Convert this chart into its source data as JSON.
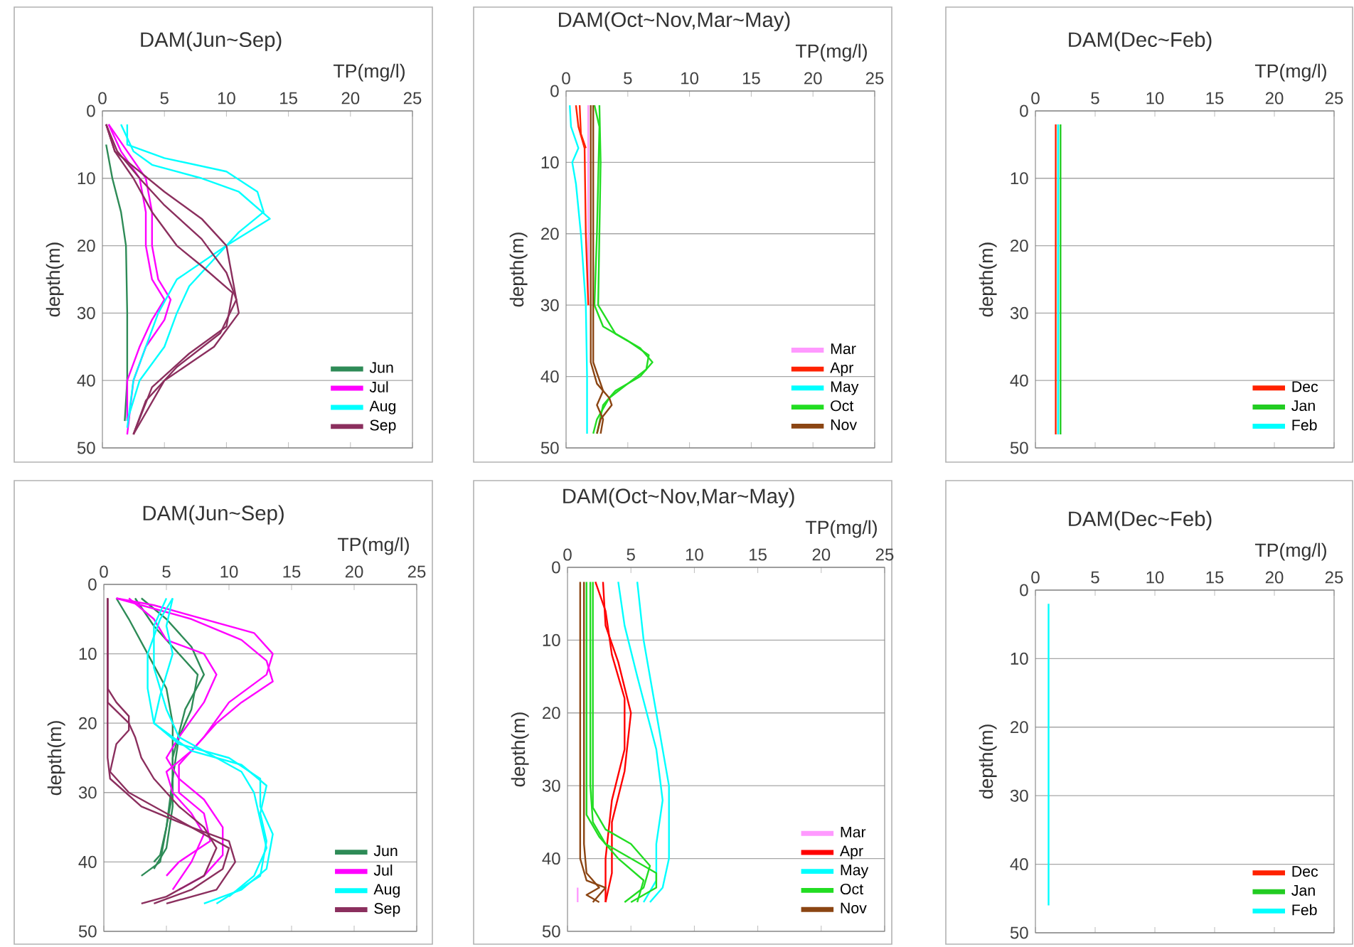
{
  "chart_data": [
    {
      "type": "line",
      "title": "DAM(Jun~Sep)",
      "xlabel": "TP(mg/l)",
      "ylabel": "depth(m)",
      "xlim": [
        0,
        25
      ],
      "ylim": [
        50,
        0
      ],
      "xticks": [
        0,
        5,
        10,
        15,
        20,
        25
      ],
      "yticks": [
        0,
        10,
        20,
        30,
        40,
        50
      ],
      "grid": "y",
      "legend": "bottom right",
      "series": [
        {
          "name": "Jun",
          "color": "#2e8b57",
          "x": [
            0.3,
            0.8,
            1.5,
            1.9,
            2.0,
            2.0,
            1.8
          ],
          "values": [
            5,
            10,
            15,
            20,
            30,
            40,
            46
          ]
        },
        {
          "name": "Jul",
          "color": "#ff00ff",
          "x": [
            0.5,
            1.5,
            3,
            3.5,
            3.5,
            4,
            5,
            4,
            3,
            2,
            2
          ],
          "values": [
            2,
            6,
            10,
            15,
            20,
            25,
            28,
            31,
            35,
            40,
            46
          ]
        },
        {
          "color": "#ff00ff",
          "x": [
            0.5,
            2,
            3.5,
            4,
            4,
            4.5,
            5.5,
            5,
            3.5,
            2.5,
            2
          ],
          "values": [
            2,
            6,
            10,
            15,
            20,
            25,
            28,
            31,
            35,
            40,
            48
          ]
        },
        {
          "name": "Aug",
          "color": "#00ffff",
          "x": [
            2,
            2,
            5,
            10,
            12.5,
            13,
            11,
            9,
            7,
            6,
            5,
            3,
            2
          ],
          "values": [
            2,
            5,
            7,
            9,
            12,
            15,
            18,
            22,
            26,
            30,
            35,
            40,
            46
          ]
        },
        {
          "color": "#00ffff",
          "x": [
            1.5,
            2.5,
            4,
            8,
            11,
            13.5,
            10,
            6,
            4.5,
            3.5,
            2.5,
            2
          ],
          "values": [
            2,
            6,
            8,
            10,
            12,
            16,
            20,
            25,
            30,
            35,
            40,
            47
          ]
        },
        {
          "name": "Sep",
          "color": "#8b2f5e",
          "x": [
            0.3,
            1,
            3,
            5,
            8,
            10,
            10.5,
            11,
            9,
            5,
            2.5
          ],
          "values": [
            2,
            6,
            9,
            12,
            16,
            20,
            25,
            30,
            35,
            40,
            48
          ]
        },
        {
          "color": "#8b2f5e",
          "x": [
            0.3,
            1.2,
            3,
            5,
            8,
            10,
            10.8,
            9.5,
            6,
            3.5,
            2.5
          ],
          "values": [
            2,
            6,
            10,
            14,
            19,
            24,
            28,
            33,
            38,
            43,
            48
          ]
        },
        {
          "color": "#8b2f5e",
          "x": [
            0.3,
            1,
            2.5,
            4,
            6,
            8,
            10.5,
            10,
            7,
            4,
            2.5
          ],
          "values": [
            2,
            6,
            10,
            15,
            20,
            23,
            27,
            32,
            36,
            41,
            48
          ]
        }
      ]
    },
    {
      "type": "line",
      "title": "DAM(Oct~Nov,Mar~May)",
      "xlabel": "TP(mg/l)",
      "ylabel": "depth(m)",
      "xlim": [
        0,
        25
      ],
      "ylim": [
        50,
        0
      ],
      "xticks": [
        0,
        5,
        10,
        15,
        20,
        25
      ],
      "yticks": [
        0,
        10,
        20,
        30,
        40,
        50
      ],
      "grid": "y",
      "legend": "bottom right",
      "series": [
        {
          "name": "Mar",
          "color": "#ff99ff",
          "x": [
            1.8,
            1.8
          ],
          "values": [
            2,
            30
          ]
        },
        {
          "name": "Apr",
          "color": "#ff2200",
          "x": [
            0.8,
            1,
            1.5,
            1.6,
            1.8
          ],
          "values": [
            2,
            5,
            8,
            20,
            30
          ]
        },
        {
          "color": "#ff2200",
          "x": [
            1.1,
            1.2,
            1.6
          ],
          "values": [
            2,
            6,
            8
          ]
        },
        {
          "name": "May",
          "color": "#00ffff",
          "x": [
            0.3,
            0.4,
            1,
            0.5,
            0.8,
            1.2,
            1.6,
            1.7,
            1.7
          ],
          "values": [
            2,
            5,
            8,
            10,
            13,
            20,
            30,
            40,
            48
          ]
        },
        {
          "name": "Oct",
          "color": "#22dd22",
          "x": [
            2.3,
            2.7,
            2.5,
            2.3,
            3,
            5,
            6.7,
            6.5,
            5,
            3.5,
            2.5,
            2.2
          ],
          "values": [
            2,
            5,
            20,
            30,
            33,
            35,
            37,
            39,
            41,
            43,
            46,
            48
          ]
        },
        {
          "color": "#22dd22",
          "x": [
            2.7,
            2.8,
            2.6,
            4,
            6,
            7,
            6,
            4,
            3,
            2.5
          ],
          "values": [
            2,
            10,
            30,
            34,
            36,
            38,
            40,
            42,
            44,
            48
          ]
        },
        {
          "name": "Nov",
          "color": "#8b4513",
          "x": [
            2,
            2,
            2.5,
            3.5,
            3.7,
            2.8,
            2.5
          ],
          "values": [
            2,
            38,
            41,
            43,
            44,
            46,
            48
          ]
        },
        {
          "color": "#8b4513",
          "x": [
            2.2,
            2.2,
            3,
            2.5,
            3,
            2.8
          ],
          "values": [
            2,
            38,
            42,
            44,
            46,
            48
          ]
        }
      ]
    },
    {
      "type": "line",
      "title": "DAM(Dec~Feb)",
      "xlabel": "TP(mg/l)",
      "ylabel": "depth(m)",
      "xlim": [
        0,
        25
      ],
      "ylim": [
        50,
        0
      ],
      "xticks": [
        0,
        5,
        10,
        15,
        20,
        25
      ],
      "yticks": [
        0,
        10,
        20,
        30,
        40,
        50
      ],
      "grid": "y",
      "legend": "bottom right",
      "series": [
        {
          "name": "Dec",
          "color": "#ff2200",
          "x": [
            1.7,
            1.7
          ],
          "values": [
            2,
            48
          ]
        },
        {
          "name": "Jan",
          "color": "#22cc22",
          "x": [
            2.1,
            2.1
          ],
          "values": [
            2,
            48
          ]
        },
        {
          "name": "Feb",
          "color": "#00ffff",
          "x": [
            1.9,
            1.9
          ],
          "values": [
            2,
            48
          ]
        }
      ]
    },
    {
      "type": "line",
      "title": "DAM(Jun~Sep)",
      "xlabel": "TP(mg/l)",
      "ylabel": "depth(m)",
      "xlim": [
        0,
        25
      ],
      "ylim": [
        50,
        0
      ],
      "xticks": [
        0,
        5,
        10,
        15,
        20,
        25
      ],
      "yticks": [
        0,
        10,
        20,
        30,
        40,
        50
      ],
      "grid": "y",
      "legend": "bottom right",
      "series": [
        {
          "name": "Jun",
          "color": "#2e8b57",
          "x": [
            1,
            2,
            3.5,
            5,
            5.5,
            5.5,
            5,
            4.5,
            3
          ],
          "values": [
            2,
            5,
            10,
            15,
            20,
            30,
            35,
            40,
            42
          ]
        },
        {
          "color": "#2e8b57",
          "x": [
            2.5,
            4,
            6,
            7.5,
            7,
            6,
            5.5,
            5,
            4.5,
            4
          ],
          "values": [
            2,
            6,
            10,
            13,
            18,
            22,
            28,
            35,
            39,
            40
          ]
        },
        {
          "color": "#2e8b57",
          "x": [
            3,
            5,
            7,
            8,
            6.5,
            5.5,
            5.5,
            5,
            4
          ],
          "values": [
            2,
            5,
            9,
            13,
            18,
            25,
            32,
            38,
            41
          ]
        },
        {
          "name": "Jul",
          "color": "#ff00ff",
          "x": [
            1,
            4,
            12,
            13.5,
            13,
            10,
            8,
            6,
            6,
            8,
            8.5,
            6,
            5
          ],
          "values": [
            2,
            3,
            7,
            10,
            13,
            17,
            22,
            26,
            30,
            33,
            37,
            40,
            42
          ]
        },
        {
          "color": "#ff00ff",
          "x": [
            2,
            4,
            5,
            8,
            9,
            8,
            6,
            5,
            6,
            8,
            9.5,
            9.5,
            8,
            6
          ],
          "values": [
            2,
            5,
            8,
            10,
            13,
            17,
            22,
            25,
            28,
            31,
            35,
            39,
            42,
            44
          ]
        },
        {
          "color": "#ff00ff",
          "x": [
            1,
            3,
            7,
            11,
            13,
            13.5,
            11,
            9,
            7,
            5,
            5.5,
            7,
            8,
            7,
            5.5
          ],
          "values": [
            2,
            3,
            5,
            8,
            11,
            14,
            17,
            20,
            24,
            27,
            30,
            33,
            36,
            40,
            44
          ]
        },
        {
          "name": "Aug",
          "color": "#00ffff",
          "x": [
            5.5,
            4.5,
            3.5,
            3.5,
            4,
            6,
            10,
            12.5,
            12.5,
            13.5,
            13,
            11,
            8
          ],
          "values": [
            2,
            5,
            10,
            15,
            20,
            23,
            25,
            28,
            32,
            36,
            41,
            44,
            46
          ]
        },
        {
          "color": "#00ffff",
          "x": [
            5,
            4,
            4,
            5,
            6,
            9,
            11,
            12,
            12.5,
            13,
            12,
            10
          ],
          "values": [
            2,
            6,
            12,
            18,
            22,
            25,
            27,
            30,
            34,
            38,
            42,
            45
          ]
        },
        {
          "color": "#00ffff",
          "x": [
            5.5,
            5,
            5.5,
            4.5,
            4,
            7,
            11,
            13,
            12.5,
            13,
            12.5,
            9
          ],
          "values": [
            2,
            6,
            10,
            16,
            20,
            24,
            26,
            29,
            33,
            37,
            42,
            46
          ]
        },
        {
          "name": "Sep",
          "color": "#8b2f5e",
          "x": [
            0.3,
            0.3,
            1,
            2,
            2,
            1,
            0.5,
            2,
            5,
            8,
            10,
            9.5,
            7,
            4
          ],
          "values": [
            2,
            15,
            17,
            19,
            21,
            23,
            27,
            30,
            33,
            36,
            38,
            41,
            44,
            46
          ]
        },
        {
          "color": "#8b2f5e",
          "x": [
            0.3,
            0.3,
            0.5,
            3,
            7,
            10,
            10.5,
            9,
            5
          ],
          "values": [
            2,
            25,
            28,
            32,
            35,
            37,
            40,
            44,
            46
          ]
        },
        {
          "color": "#8b2f5e",
          "x": [
            0.3,
            0.3,
            2,
            2.5,
            3,
            4,
            6,
            8,
            9,
            8,
            5,
            3
          ],
          "values": [
            2,
            17,
            20,
            22,
            25,
            28,
            32,
            35,
            38,
            42,
            45,
            46
          ]
        }
      ]
    },
    {
      "type": "line",
      "title": "DAM(Oct~Nov,Mar~May)",
      "xlabel": "TP(mg/l)",
      "ylabel": "depth(m)",
      "xlim": [
        0,
        25
      ],
      "ylim": [
        50,
        0
      ],
      "xticks": [
        0,
        5,
        10,
        15,
        20,
        25
      ],
      "yticks": [
        0,
        10,
        20,
        30,
        40,
        50
      ],
      "grid": "y",
      "legend": "bottom right",
      "series": [
        {
          "name": "Mar",
          "color": "#ff99ff",
          "x": [
            0.8,
            0.8
          ],
          "values": [
            44,
            46
          ]
        },
        {
          "name": "Apr",
          "color": "#ff0000",
          "x": [
            2.8,
            3,
            4,
            5,
            4.5,
            3.5,
            3.5,
            3
          ],
          "values": [
            2,
            8,
            13,
            20,
            28,
            35,
            42,
            46
          ]
        },
        {
          "color": "#ff0000",
          "x": [
            2.2,
            3,
            3.5,
            4.5,
            4.5,
            3.5,
            3,
            3
          ],
          "values": [
            2,
            6,
            12,
            18,
            25,
            32,
            40,
            46
          ]
        },
        {
          "name": "May",
          "color": "#00ffff",
          "x": [
            5.5,
            6,
            7,
            8,
            8,
            7.5,
            6.5
          ],
          "values": [
            2,
            10,
            20,
            30,
            40,
            44,
            46
          ]
        },
        {
          "color": "#00ffff",
          "x": [
            4,
            4.5,
            5.5,
            7,
            7.5,
            7,
            7,
            6
          ],
          "values": [
            2,
            8,
            15,
            25,
            32,
            38,
            43,
            46
          ]
        },
        {
          "name": "Oct",
          "color": "#22dd22",
          "x": [
            1.8,
            1.8,
            2,
            3,
            5,
            7,
            7,
            5
          ],
          "values": [
            2,
            30,
            35,
            38,
            40,
            42,
            44,
            46
          ]
        },
        {
          "color": "#22dd22",
          "x": [
            2,
            2,
            3,
            5,
            6.5,
            6,
            4.5
          ],
          "values": [
            2,
            33,
            36,
            38,
            41,
            44,
            46
          ]
        },
        {
          "color": "#22dd22",
          "x": [
            1.5,
            1.5,
            2.5,
            4,
            6,
            5.5
          ],
          "values": [
            2,
            34,
            37,
            40,
            43,
            46
          ]
        },
        {
          "name": "Nov",
          "color": "#8b4513",
          "x": [
            1.3,
            1.3,
            1.5,
            2.5,
            1.5,
            2.5
          ],
          "values": [
            2,
            38,
            42,
            44,
            45,
            46
          ]
        },
        {
          "color": "#8b4513",
          "x": [
            1,
            1,
            1.5,
            3,
            2
          ],
          "values": [
            2,
            40,
            43,
            44,
            46
          ]
        }
      ]
    },
    {
      "type": "line",
      "title": "DAM(Dec~Feb)",
      "xlabel": "TP(mg/l)",
      "ylabel": "depth(m)",
      "xlim": [
        0,
        25
      ],
      "ylim": [
        50,
        0
      ],
      "xticks": [
        0,
        5,
        10,
        15,
        20,
        25
      ],
      "yticks": [
        0,
        10,
        20,
        30,
        40,
        50
      ],
      "grid": "y",
      "legend": "bottom right",
      "series": [
        {
          "name": "Dec",
          "color": "#ff2200",
          "x": [
            null
          ],
          "values": [
            null
          ]
        },
        {
          "name": "Jan",
          "color": "#22cc22",
          "x": [
            null
          ],
          "values": [
            null
          ]
        },
        {
          "name": "Feb",
          "color": "#00ffff",
          "x": [
            1.1,
            1.1
          ],
          "values": [
            2,
            46
          ]
        }
      ]
    }
  ]
}
